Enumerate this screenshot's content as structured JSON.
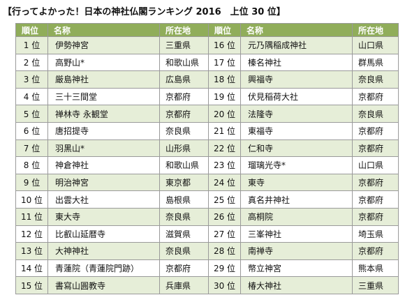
{
  "title": "【行ってよかった！日本の神社仏閣ランキング 2016　上位 30 位】",
  "headers": {
    "rank": "順位",
    "name": "名称",
    "location": "所在地"
  },
  "left": [
    {
      "rank": "1 位",
      "name": "伊勢神宮",
      "location": "三重県"
    },
    {
      "rank": "2 位",
      "name": "高野山*",
      "location": "和歌山県"
    },
    {
      "rank": "3 位",
      "name": "厳島神社",
      "location": "広島県"
    },
    {
      "rank": "4 位",
      "name": "三十三間堂",
      "location": "京都府"
    },
    {
      "rank": "5 位",
      "name": "禅林寺 永観堂",
      "location": "京都府"
    },
    {
      "rank": "6 位",
      "name": "唐招提寺",
      "location": "奈良県"
    },
    {
      "rank": "7 位",
      "name": "羽黒山*",
      "location": "山形県"
    },
    {
      "rank": "8 位",
      "name": "神倉神社",
      "location": "和歌山県"
    },
    {
      "rank": "9 位",
      "name": "明治神宮",
      "location": "東京都"
    },
    {
      "rank": "10 位",
      "name": "出雲大社",
      "location": "島根県"
    },
    {
      "rank": "11 位",
      "name": "東大寺",
      "location": "奈良県"
    },
    {
      "rank": "12 位",
      "name": "比叡山延暦寺",
      "location": "滋賀県"
    },
    {
      "rank": "13 位",
      "name": "大神神社",
      "location": "奈良県"
    },
    {
      "rank": "14 位",
      "name": "青蓮院（青蓮院門跡）",
      "location": "京都府"
    },
    {
      "rank": "15 位",
      "name": "書寫山圓教寺",
      "location": "兵庫県"
    }
  ],
  "right": [
    {
      "rank": "16 位",
      "name": "元乃隅稲成神社",
      "location": "山口県"
    },
    {
      "rank": "17 位",
      "name": "榛名神社",
      "location": "群馬県"
    },
    {
      "rank": "18 位",
      "name": "興福寺",
      "location": "奈良県"
    },
    {
      "rank": "19 位",
      "name": "伏見稲荷大社",
      "location": "京都府"
    },
    {
      "rank": "20 位",
      "name": "法隆寺",
      "location": "奈良県"
    },
    {
      "rank": "21 位",
      "name": "東福寺",
      "location": "京都府"
    },
    {
      "rank": "22 位",
      "name": "仁和寺",
      "location": "京都府"
    },
    {
      "rank": "23 位",
      "name": "瑠璃光寺*",
      "location": "山口県"
    },
    {
      "rank": "24 位",
      "name": "東寺",
      "location": "京都府"
    },
    {
      "rank": "25 位",
      "name": "真名井神社",
      "location": "京都府"
    },
    {
      "rank": "26 位",
      "name": "高桐院",
      "location": "京都府"
    },
    {
      "rank": "27 位",
      "name": "三峯神社",
      "location": "埼玉県"
    },
    {
      "rank": "28 位",
      "name": "南禅寺",
      "location": "京都府"
    },
    {
      "rank": "29 位",
      "name": "幣立神宮",
      "location": "熊本県"
    },
    {
      "rank": "30 位",
      "name": "椿大神社",
      "location": "三重県"
    }
  ],
  "colors": {
    "header_bg": "#90ad5a",
    "header_text": "#ffffff",
    "row_alt": "#e6eed8",
    "border": "#9a9a9a"
  }
}
